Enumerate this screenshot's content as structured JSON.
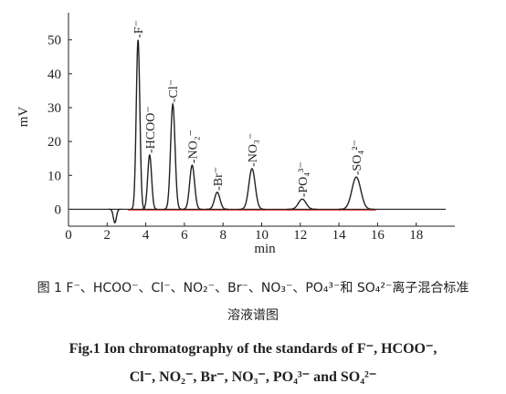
{
  "chart_data": {
    "type": "chromatogram",
    "x_label": "min",
    "y_label": "mV",
    "xlim": [
      0,
      20
    ],
    "xticks": [
      0,
      2,
      4,
      6,
      8,
      10,
      12,
      14,
      16,
      18
    ],
    "ylim": [
      -5,
      58
    ],
    "yticks": [
      0,
      10,
      20,
      30,
      40,
      50
    ],
    "color": "#222222",
    "baseline_color": "#e03030",
    "x": [
      2.4,
      3.6,
      4.2,
      5.4,
      6.4,
      7.7,
      9.5,
      12.1,
      14.9
    ],
    "values": [
      -4,
      50,
      16,
      31,
      13,
      5,
      12,
      3,
      9.5
    ],
    "labels": [
      null,
      "-F⁻",
      "-HCOO⁻",
      "-Cl⁻",
      "-NO₂⁻",
      "-Br⁻",
      "-NO₃⁻",
      "-PO₄³⁻",
      "-SO₄²⁻"
    ]
  },
  "caption_cn": [
    "图 1 F⁻、HCOO⁻、Cl⁻、NO₂⁻、Br⁻、NO₃⁻、PO₄³⁻和 SO₄²⁻离子混合标准",
    "溶液谱图"
  ],
  "caption_en": [
    "Fig.1 Ion chromatography of the standards of F⁻, HCOO⁻,",
    "Cl⁻, NO₂⁻, Br⁻, NO₃⁻, PO₄³⁻ and SO₄²⁻"
  ]
}
